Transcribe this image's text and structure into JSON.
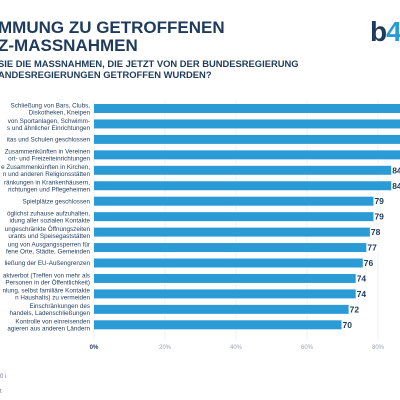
{
  "header": {
    "title_lines": [
      "MMUNG ZU GETROFFENEN",
      "Z-MASSNAHMEN"
    ],
    "subtitle_lines": [
      "SIE DIE MASSNAHMEN, DIE JETZT VON DER BUNDESREGIERUNG",
      "ANDESREGIERUNGEN GETROFFEN WURDEN?"
    ]
  },
  "logo": {
    "letter": "b",
    "digit": "4"
  },
  "footer": {
    "line1": "0 i",
    "line2": "t"
  },
  "colors": {
    "bar": "#2b9bd6",
    "text": "#1f3b5c",
    "tick": "#9aa5b1"
  },
  "chart_data": {
    "type": "bar",
    "orientation": "horizontal",
    "categories": [
      [
        "Schließung von Bars, Clubs,",
        "Diskotheken, Kneipen"
      ],
      [
        "von Sportanlagen, Schwimm-",
        "s und ähnlicher Einrichtungen"
      ],
      [
        "itas und Schulen geschlossen"
      ],
      [
        "Zusammenkünften in Vereinen",
        "ort- und Freizeiteinrichtungen"
      ],
      [
        "e Zusammenkünften in Kirchen,",
        "n und anderen Religionsstätten"
      ],
      [
        "ränkungen in Krankenhäusern,",
        "richtungen und Pflegeheimen"
      ],
      [
        "Spielplätze geschlossen"
      ],
      [
        "öglichst zuhause aufzuhalten,",
        "idung aller sozialen Kontakte"
      ],
      [
        "ungeschränkte Öffnungszeiten",
        "urants und Speisegaststätten"
      ],
      [
        "ung von Ausgangssperren für",
        "fene Orte, Städte, Gemeinden"
      ],
      [
        "ließung der EU-Außengrenzen"
      ],
      [
        "aktverbot (Treffen von mehr als",
        "Personen in der Öffentlichkeit)"
      ],
      [
        "nlung, selbst familiäre Kontakte",
        "n Haushalts) zu vermeiden"
      ],
      [
        "Einschränkungen des",
        "handels, Ladenschließungen"
      ],
      [
        "Kontrolle von einreisenden",
        "agieren aus anderen Ländern"
      ]
    ],
    "values": [
      null,
      null,
      null,
      null,
      84,
      84,
      79,
      79,
      78,
      77,
      76,
      74,
      74,
      72,
      70
    ],
    "value_labels": [
      "",
      "",
      "",
      "",
      "84",
      "84",
      "79",
      "79",
      "78",
      "77",
      "76",
      "74",
      "74",
      "72",
      "70"
    ],
    "xlim": [
      0,
      100
    ],
    "xticks": [
      0,
      20,
      40,
      60,
      80
    ],
    "xtick_labels": [
      "0%",
      "20%",
      "40%",
      "60%",
      "80%"
    ],
    "assumed_values_for_clipped_bars": [
      96,
      93,
      90,
      88
    ]
  }
}
